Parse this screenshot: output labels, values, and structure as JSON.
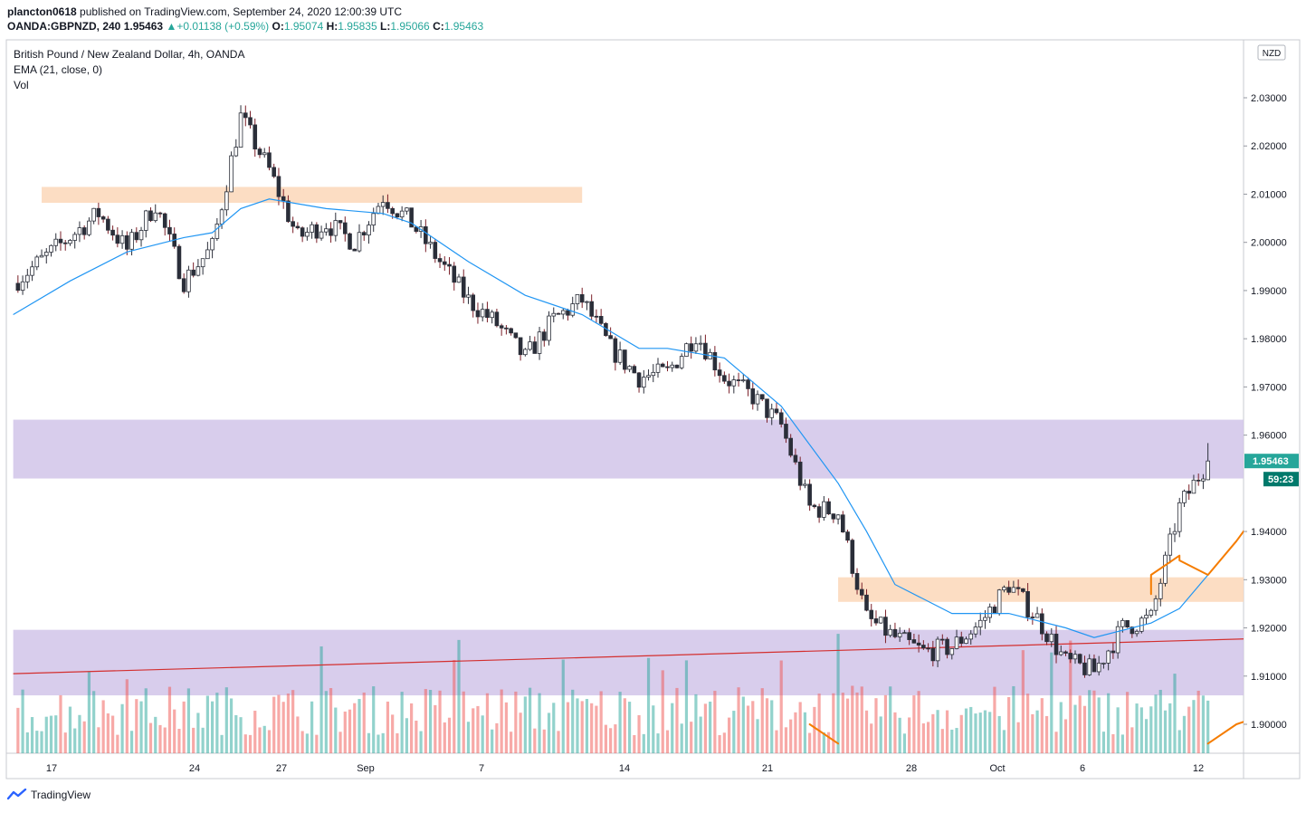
{
  "header": {
    "author": "plancton0618",
    "published_text": "published on TradingView.com, September 24, 2020 12:00:39 UTC",
    "symbol": "OANDA:GBPNZD, 240",
    "last": "1.95463",
    "change": "+0.01138 (+0.59%)",
    "o_label": "O:",
    "o": "1.95074",
    "h_label": "H:",
    "h": "1.95835",
    "l_label": "L:",
    "l": "1.95066",
    "c_label": "C:",
    "c": "1.95463"
  },
  "legend": {
    "title": "British Pound / New Zealand Dollar, 4h, OANDA",
    "ema": "EMA (21, close, 0)",
    "vol": "Vol"
  },
  "footer": {
    "brand": "TradingView"
  },
  "colors": {
    "up": "#26a69a",
    "down": "#ef5350",
    "ema": "#2196f3",
    "zone_purple": "#d1c4e9",
    "zone_orange": "#fbd7b8",
    "trend": "#d32f2f",
    "curve": "#f57c00"
  },
  "chart_data": {
    "type": "candlestick",
    "currency_badge": "NZD",
    "price_badge": "1.95463",
    "timer_badge": "59:23",
    "y_ticks": [
      "2.03000",
      "2.02000",
      "2.01000",
      "2.00000",
      "1.99000",
      "1.98000",
      "1.97000",
      "1.96000",
      "1.94000",
      "1.93000",
      "1.92000",
      "1.91000",
      "1.90000"
    ],
    "x_ticks": [
      "17",
      "24",
      "27",
      "Sep",
      "7",
      "14",
      "21",
      "28",
      "Oct",
      "6",
      "12"
    ],
    "ylim": [
      1.894,
      2.042
    ],
    "zones": [
      {
        "kind": "orange",
        "from_date": "2020-08-15",
        "to_date": "2020-09-03",
        "low": 2.0082,
        "high": 2.0115
      },
      {
        "kind": "purple",
        "from_date": "2020-08-14",
        "to_date": "2020-10-16",
        "low": 1.951,
        "high": 1.9632
      },
      {
        "kind": "orange",
        "from_date": "2020-09-12",
        "to_date": "2020-10-16",
        "low": 1.9254,
        "high": 1.9305
      },
      {
        "kind": "purple",
        "from_date": "2020-08-14",
        "to_date": "2020-10-16",
        "low": 1.906,
        "high": 1.9196
      }
    ],
    "trendline": {
      "from": [
        "2020-08-14",
        1.9105
      ],
      "to": [
        "2020-10-16",
        1.921
      ]
    },
    "swing_points": [
      [
        "2020-08-14",
        1.9915
      ],
      [
        "2020-08-17",
        2.006
      ],
      [
        "2020-08-18",
        1.9985
      ],
      [
        "2020-08-19",
        2.008
      ],
      [
        "2020-08-20",
        1.992
      ],
      [
        "2020-08-21",
        1.999
      ],
      [
        "2020-08-22",
        2.026
      ],
      [
        "2020-08-23",
        2.015
      ],
      [
        "2020-08-24",
        2.001
      ],
      [
        "2020-08-25",
        2.004
      ],
      [
        "2020-08-26",
        2.0
      ],
      [
        "2020-08-27",
        2.0095
      ],
      [
        "2020-08-28",
        2.004
      ],
      [
        "2020-08-29",
        1.996
      ],
      [
        "2020-08-30",
        1.988
      ],
      [
        "2020-08-31",
        1.983
      ],
      [
        "2020-09-01",
        1.976
      ],
      [
        "2020-09-02",
        1.984
      ],
      [
        "2020-09-03",
        1.988
      ],
      [
        "2020-09-04",
        1.978
      ],
      [
        "2020-09-05",
        1.972
      ],
      [
        "2020-09-06",
        1.973
      ],
      [
        "2020-09-07",
        1.981
      ],
      [
        "2020-09-08",
        1.972
      ],
      [
        "2020-09-09",
        1.968
      ],
      [
        "2020-09-10",
        1.962
      ],
      [
        "2020-09-11",
        1.945
      ],
      [
        "2020-09-12",
        1.944
      ],
      [
        "2020-09-13",
        1.922
      ],
      [
        "2020-09-14",
        1.918
      ],
      [
        "2020-09-15",
        1.915
      ],
      [
        "2020-09-16",
        1.916
      ],
      [
        "2020-09-17",
        1.921
      ],
      [
        "2020-09-18",
        1.929
      ],
      [
        "2020-09-19",
        1.922
      ],
      [
        "2020-09-20",
        1.913
      ],
      [
        "2020-09-21",
        1.911
      ],
      [
        "2020-09-22",
        1.92
      ],
      [
        "2020-09-23",
        1.922
      ],
      [
        "2020-09-24",
        1.945
      ],
      [
        "2020-09-25",
        1.9546
      ]
    ],
    "ema_points": [
      [
        "2020-08-14",
        1.985
      ],
      [
        "2020-08-16",
        1.992
      ],
      [
        "2020-08-18",
        1.998
      ],
      [
        "2020-08-20",
        2.001
      ],
      [
        "2020-08-21",
        2.002
      ],
      [
        "2020-08-22",
        2.007
      ],
      [
        "2020-08-23",
        2.009
      ],
      [
        "2020-08-25",
        2.007
      ],
      [
        "2020-08-27",
        2.006
      ],
      [
        "2020-08-28",
        2.004
      ],
      [
        "2020-08-30",
        1.996
      ],
      [
        "2020-09-01",
        1.989
      ],
      [
        "2020-09-03",
        1.985
      ],
      [
        "2020-09-05",
        1.978
      ],
      [
        "2020-09-06",
        1.978
      ],
      [
        "2020-09-08",
        1.976
      ],
      [
        "2020-09-10",
        1.966
      ],
      [
        "2020-09-12",
        1.95
      ],
      [
        "2020-09-13",
        1.94
      ],
      [
        "2020-09-14",
        1.929
      ],
      [
        "2020-09-16",
        1.923
      ],
      [
        "2020-09-18",
        1.923
      ],
      [
        "2020-09-20",
        1.92
      ],
      [
        "2020-09-21",
        1.918
      ],
      [
        "2020-09-23",
        1.921
      ],
      [
        "2020-09-24",
        1.924
      ],
      [
        "2020-09-25",
        1.931
      ]
    ],
    "projection_curves": [
      [
        [
          "2020-09-23",
          1.927
        ],
        [
          "2020-09-23",
          1.931
        ],
        [
          "2020-09-24",
          1.935
        ],
        [
          "2020-09-24",
          1.934
        ],
        [
          "2020-09-25",
          1.931
        ],
        [
          "2020-09-26",
          1.938
        ],
        [
          "2020-09-27",
          1.946
        ],
        [
          "2020-09-28",
          1.9505
        ]
      ],
      [
        [
          "2020-09-11",
          1.9
        ],
        [
          "2020-09-12",
          1.896
        ]
      ],
      [
        [
          "2020-09-25",
          1.896
        ],
        [
          "2020-09-26",
          1.9
        ],
        [
          "2020-09-27",
          1.902
        ]
      ]
    ]
  }
}
